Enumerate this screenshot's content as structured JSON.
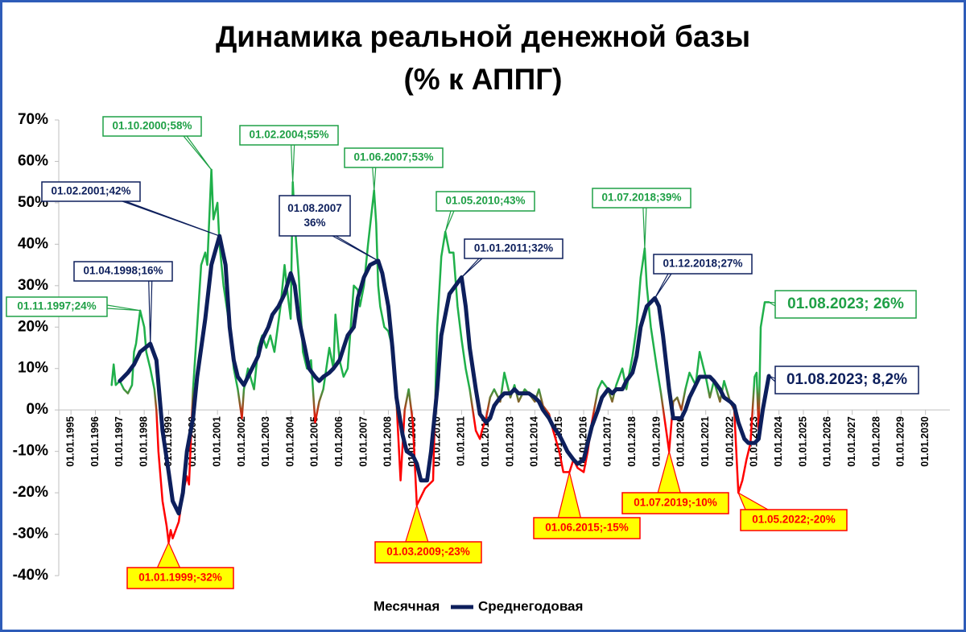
{
  "chart_data": {
    "type": "line",
    "title": "Динамика реальной денежной базы",
    "subtitle": "(% к АППГ)",
    "ylim": [
      -40,
      70
    ],
    "yticks": [
      {
        "value": -40,
        "label": "-40%"
      },
      {
        "value": -30,
        "label": "-30%"
      },
      {
        "value": -20,
        "label": "-20%"
      },
      {
        "value": -10,
        "label": "-10%"
      },
      {
        "value": 0,
        "label": "0%"
      },
      {
        "value": 10,
        "label": "10%"
      },
      {
        "value": 20,
        "label": "20%"
      },
      {
        "value": 30,
        "label": "30%"
      },
      {
        "value": 40,
        "label": "40%"
      },
      {
        "value": 50,
        "label": "50%"
      },
      {
        "value": 60,
        "label": "60%"
      },
      {
        "value": 70,
        "label": "70%"
      }
    ],
    "xlim": [
      "01.07.1994",
      "01.01.2031"
    ],
    "xticks": [
      "01.01.1995",
      "01.01.1996",
      "01.01.1997",
      "01.01.1998",
      "01.01.1999",
      "01.01.2000",
      "01.01.2001",
      "01.01.2002",
      "01.01.2003",
      "01.01.2004",
      "01.01.2005",
      "01.01.2006",
      "01.01.2007",
      "01.01.2008",
      "01.01.2009",
      "01.01.2010",
      "01.01.2011",
      "01.01.2012",
      "01.01.2013",
      "01.01.2014",
      "01.01.2015",
      "01.01.2016",
      "01.01.2017",
      "01.01.2018",
      "01.01.2019",
      "01.01.2020",
      "01.01.2021",
      "01.01.2022",
      "01.01.2023",
      "01.01.2024",
      "01.01.2025",
      "01.01.2026",
      "01.01.2027",
      "01.01.2028",
      "01.01.2029",
      "01.01.2030"
    ],
    "legend": "bottom",
    "series": [
      {
        "name": "Месячная",
        "color": "#1fb04a",
        "negative_color": "#ff0000",
        "width": 2.5,
        "x": [
          "01.09.1996",
          "01.10.1996",
          "01.11.1996",
          "01.01.1997",
          "01.03.1997",
          "01.05.1997",
          "01.07.1997",
          "01.08.1997",
          "01.09.1997",
          "01.11.1997",
          "01.12.1997",
          "01.01.1998",
          "01.02.1998",
          "01.04.1998",
          "01.06.1998",
          "01.07.1998",
          "01.08.1998",
          "01.10.1998",
          "01.12.1998",
          "01.01.1999",
          "01.02.1999",
          "01.03.1999",
          "01.06.1999",
          "01.08.1999",
          "01.10.1999",
          "01.11.1999",
          "01.01.2000",
          "01.03.2000",
          "01.05.2000",
          "01.07.2000",
          "01.08.2000",
          "01.10.2000",
          "01.11.2000",
          "01.01.2001",
          "01.02.2001",
          "01.04.2001",
          "01.07.2001",
          "01.09.2001",
          "01.11.2001",
          "01.01.2002",
          "01.02.2002",
          "01.04.2002",
          "01.07.2002",
          "01.09.2002",
          "01.11.2002",
          "01.01.2003",
          "01.03.2003",
          "01.05.2003",
          "01.08.2003",
          "01.10.2003",
          "01.11.2003",
          "01.01.2004",
          "01.02.2004",
          "01.03.2004",
          "01.05.2004",
          "01.07.2004",
          "01.09.2004",
          "01.11.2004",
          "01.01.2005",
          "01.03.2005",
          "01.05.2005",
          "01.08.2005",
          "01.10.2005",
          "01.11.2005",
          "01.01.2006",
          "01.03.2006",
          "01.05.2006",
          "01.08.2006",
          "01.10.2006",
          "01.11.2006",
          "01.01.2007",
          "01.03.2007",
          "01.06.2007",
          "01.07.2007",
          "01.08.2007",
          "01.09.2007",
          "01.11.2007",
          "01.01.2008",
          "01.03.2008",
          "01.05.2008",
          "01.07.2008",
          "01.09.2008",
          "01.11.2008",
          "01.01.2009",
          "01.03.2009",
          "01.04.2009",
          "01.07.2009",
          "01.09.2009",
          "01.11.2009",
          "01.01.2010",
          "01.03.2010",
          "01.05.2010",
          "01.07.2010",
          "01.09.2010",
          "01.11.2010",
          "01.01.2011",
          "01.03.2011",
          "01.05.2011",
          "01.08.2011",
          "01.10.2011",
          "01.11.2011",
          "01.01.2012",
          "01.03.2012",
          "01.05.2012",
          "01.08.2012",
          "01.10.2012",
          "01.11.2012",
          "01.01.2013",
          "01.03.2013",
          "01.05.2013",
          "01.08.2013",
          "01.10.2013",
          "01.01.2014",
          "01.03.2014",
          "01.05.2014",
          "01.08.2014",
          "01.10.2014",
          "01.01.2015",
          "01.03.2015",
          "01.06.2015",
          "01.08.2015",
          "01.10.2015",
          "01.01.2016",
          "01.03.2016",
          "01.05.2016",
          "01.08.2016",
          "01.10.2016",
          "01.01.2017",
          "01.03.2017",
          "01.05.2017",
          "01.08.2017",
          "01.10.2017",
          "01.01.2018",
          "01.03.2018",
          "01.05.2018",
          "01.07.2018",
          "01.08.2018",
          "01.10.2018",
          "01.01.2019",
          "01.03.2019",
          "01.07.2019",
          "01.09.2019",
          "01.11.2019",
          "01.01.2020",
          "01.03.2020",
          "01.05.2020",
          "01.08.2020",
          "01.10.2020",
          "01.01.2021",
          "01.03.2021",
          "01.05.2021",
          "01.08.2021",
          "01.10.2021",
          "01.01.2022",
          "01.03.2022",
          "01.05.2022",
          "01.07.2022",
          "01.09.2022",
          "01.11.2022",
          "01.01.2023",
          "01.02.2023",
          "01.03.2023",
          "01.04.2023",
          "01.06.2023",
          "01.08.2023"
        ],
        "values": [
          6,
          11,
          6,
          7,
          5,
          4,
          6,
          14,
          16,
          24,
          22,
          20,
          14,
          10,
          5,
          0,
          -10,
          -22,
          -28,
          -32,
          -29,
          -31,
          -27,
          -20,
          -16,
          -18,
          5,
          20,
          35,
          38,
          35,
          58,
          46,
          50,
          40,
          30,
          20,
          10,
          5,
          -2,
          5,
          10,
          5,
          15,
          18,
          15,
          18,
          14,
          25,
          35,
          30,
          22,
          55,
          45,
          32,
          14,
          10,
          12,
          -3,
          2,
          5,
          15,
          10,
          23,
          12,
          8,
          10,
          30,
          29,
          25,
          30,
          40,
          53,
          45,
          30,
          25,
          20,
          19,
          15,
          2,
          -17,
          0,
          5,
          -3,
          -23,
          -22,
          -19,
          -18,
          -17,
          20,
          37,
          43,
          38,
          38,
          25,
          17,
          10,
          5,
          -5,
          -7,
          -5,
          -2,
          3,
          5,
          2,
          9,
          7,
          3,
          6,
          2,
          5,
          4,
          2,
          5,
          1,
          -1,
          -5,
          -10,
          -15,
          -15,
          -12,
          -14,
          -15,
          -10,
          -3,
          5,
          7,
          5,
          2,
          6,
          10,
          5,
          13,
          20,
          32,
          39,
          30,
          20,
          10,
          4,
          -10,
          2,
          3,
          0,
          5,
          9,
          6,
          14,
          8,
          3,
          7,
          2,
          7,
          2,
          0,
          -20,
          -17,
          -12,
          -8,
          8,
          9,
          -5,
          20,
          26,
          26
        ]
      },
      {
        "name": "Среднегодовая",
        "color": "#0d1f5c",
        "width": 5,
        "x": [
          "01.01.1997",
          "01.05.1997",
          "01.08.1997",
          "01.11.1997",
          "01.04.1998",
          "01.07.1998",
          "01.10.1998",
          "01.01.1999",
          "01.03.1999",
          "01.06.1999",
          "01.08.1999",
          "01.10.1999",
          "01.01.2000",
          "01.03.2000",
          "01.07.2000",
          "01.10.2000",
          "01.02.2001",
          "01.05.2001",
          "01.07.2001",
          "01.09.2001",
          "01.11.2001",
          "01.02.2002",
          "01.04.2002",
          "01.07.2002",
          "01.09.2002",
          "01.11.2002",
          "01.02.2003",
          "01.04.2003",
          "01.07.2003",
          "01.10.2003",
          "01.01.2004",
          "01.03.2004",
          "01.05.2004",
          "01.08.2004",
          "01.10.2004",
          "01.01.2005",
          "01.03.2005",
          "01.05.2005",
          "01.08.2005",
          "01.10.2005",
          "01.01.2006",
          "01.03.2006",
          "01.05.2006",
          "01.08.2006",
          "01.10.2006",
          "01.01.2007",
          "01.04.2007",
          "01.08.2007",
          "01.10.2007",
          "01.01.2008",
          "01.03.2008",
          "01.05.2008",
          "01.08.2008",
          "01.10.2008",
          "01.01.2009",
          "01.03.2009",
          "01.05.2009",
          "01.08.2009",
          "01.10.2009",
          "01.01.2010",
          "01.03.2010",
          "01.07.2010",
          "01.01.2011",
          "01.03.2011",
          "01.05.2011",
          "01.08.2011",
          "01.10.2011",
          "01.01.2012",
          "01.03.2012",
          "01.05.2012",
          "01.08.2012",
          "01.10.2012",
          "01.01.2013",
          "01.03.2013",
          "01.05.2013",
          "01.08.2013",
          "01.10.2013",
          "01.01.2014",
          "01.03.2014",
          "01.05.2014",
          "01.08.2014",
          "01.10.2014",
          "01.01.2015",
          "01.03.2015",
          "01.05.2015",
          "01.08.2015",
          "01.10.2015",
          "01.01.2016",
          "01.03.2016",
          "01.05.2016",
          "01.08.2016",
          "01.10.2016",
          "01.01.2017",
          "01.03.2017",
          "01.05.2017",
          "01.08.2017",
          "01.10.2017",
          "01.01.2018",
          "01.03.2018",
          "01.05.2018",
          "01.08.2018",
          "01.12.2018",
          "01.02.2019",
          "01.04.2019",
          "01.07.2019",
          "01.09.2019",
          "01.11.2019",
          "01.01.2020",
          "01.03.2020",
          "01.05.2020",
          "01.08.2020",
          "01.10.2020",
          "01.01.2021",
          "01.03.2021",
          "01.05.2021",
          "01.08.2021",
          "01.10.2021",
          "01.01.2022",
          "01.03.2022",
          "01.05.2022",
          "01.08.2022",
          "01.10.2022",
          "01.01.2023",
          "01.03.2023",
          "01.05.2023",
          "01.08.2023"
        ],
        "values": [
          7,
          9,
          11,
          14,
          16,
          12,
          -5,
          -15,
          -22,
          -25,
          -20,
          -10,
          -2,
          8,
          22,
          35,
          42,
          35,
          20,
          12,
          8,
          6,
          8,
          11,
          13,
          17,
          20,
          23,
          25,
          28,
          33,
          30,
          22,
          15,
          10,
          8,
          7,
          8,
          9,
          10,
          12,
          15,
          18,
          20,
          27,
          32,
          35,
          36,
          33,
          25,
          15,
          3,
          -6,
          -10,
          -11,
          -13,
          -17,
          -17,
          -10,
          5,
          18,
          28,
          32,
          25,
          15,
          5,
          -1,
          -3,
          -2,
          1,
          3,
          4,
          4,
          5,
          4,
          4,
          4,
          3,
          2,
          0,
          -2,
          -4,
          -6,
          -8,
          -10,
          -12,
          -13,
          -12,
          -8,
          -4,
          0,
          3,
          5,
          4,
          5,
          5,
          7,
          9,
          13,
          20,
          25,
          27,
          25,
          18,
          5,
          -2,
          -2,
          -2,
          0,
          3,
          6,
          8,
          8,
          8,
          7,
          5,
          3,
          2,
          1,
          -3,
          -7,
          -8,
          -8,
          -7,
          0,
          8.2
        ]
      }
    ],
    "annotations": [
      {
        "text": "01.11.1997;24%",
        "x": "01.11.1997",
        "y": 24,
        "color": "#1fa046",
        "fill": "#ffffff"
      },
      {
        "text": "01.04.1998;16%",
        "x": "01.04.1998",
        "y": 16,
        "color": "#0d1f5c",
        "fill": "#ffffff"
      },
      {
        "text": "01.02.2001;42%",
        "x": "01.02.2001",
        "y": 42,
        "color": "#0d1f5c",
        "fill": "#ffffff"
      },
      {
        "text": "01.10.2000;58%",
        "x": "01.10.2000",
        "y": 58,
        "color": "#1fa046",
        "fill": "#ffffff"
      },
      {
        "text": "01.02.2004;55%",
        "x": "01.02.2004",
        "y": 55,
        "color": "#1fa046",
        "fill": "#ffffff"
      },
      {
        "text": "01.08.2007\n36%",
        "x": "01.08.2007",
        "y": 36,
        "color": "#0d1f5c",
        "fill": "#ffffff"
      },
      {
        "text": "01.06.2007;53%",
        "x": "01.06.2007",
        "y": 53,
        "color": "#1fa046",
        "fill": "#ffffff"
      },
      {
        "text": "01.05.2010;43%",
        "x": "01.05.2010",
        "y": 43,
        "color": "#1fa046",
        "fill": "#ffffff"
      },
      {
        "text": "01.01.2011;32%",
        "x": "01.01.2011",
        "y": 32,
        "color": "#0d1f5c",
        "fill": "#ffffff"
      },
      {
        "text": "01.07.2018;39%",
        "x": "01.07.2018",
        "y": 39,
        "color": "#1fa046",
        "fill": "#ffffff"
      },
      {
        "text": "01.12.2018;27%",
        "x": "01.12.2018",
        "y": 27,
        "color": "#0d1f5c",
        "fill": "#ffffff"
      },
      {
        "text": "01.08.2023; 26%",
        "x": "01.08.2023",
        "y": 26,
        "color": "#1fa046",
        "fill": "#ffffff"
      },
      {
        "text": "01.08.2023; 8,2%",
        "x": "01.08.2023",
        "y": 8.2,
        "color": "#0d1f5c",
        "fill": "#ffffff"
      },
      {
        "text": "01.01.1999;-32%",
        "x": "01.01.1999",
        "y": -32,
        "color": "#ff0000",
        "fill": "#ffff00"
      },
      {
        "text": "01.03.2009;-23%",
        "x": "01.03.2009",
        "y": -23,
        "color": "#ff0000",
        "fill": "#ffff00"
      },
      {
        "text": "01.06.2015;-15%",
        "x": "01.06.2015",
        "y": -15,
        "color": "#ff0000",
        "fill": "#ffff00"
      },
      {
        "text": "01.07.2019;-10%",
        "x": "01.07.2019",
        "y": -10,
        "color": "#ff0000",
        "fill": "#ffff00"
      },
      {
        "text": "01.05.2022;-20%",
        "x": "01.05.2022",
        "y": -20,
        "color": "#ff0000",
        "fill": "#ffff00"
      }
    ]
  }
}
